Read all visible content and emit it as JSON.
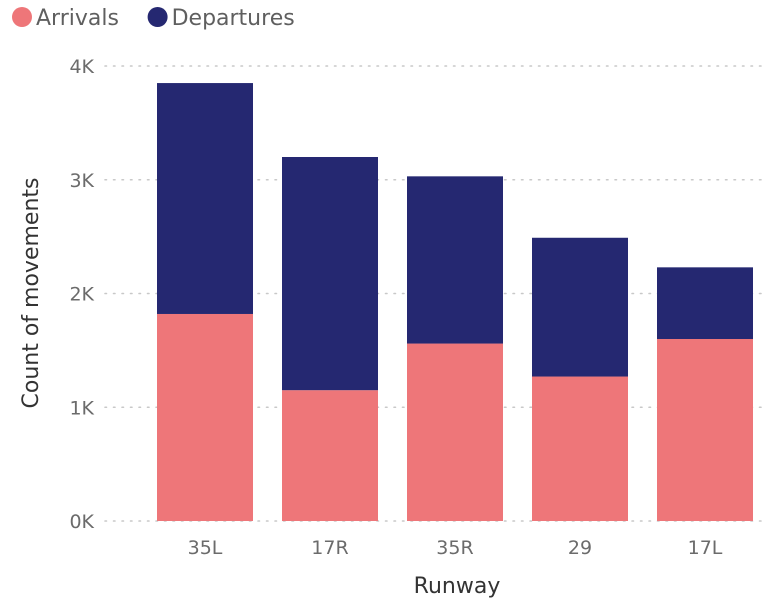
{
  "chart_data": {
    "type": "bar",
    "stacked": true,
    "categories": [
      "35L",
      "17R",
      "35R",
      "29",
      "17L"
    ],
    "series": [
      {
        "name": "Arrivals",
        "color": "#EE7679",
        "values": [
          1820,
          1150,
          1560,
          1270,
          1600
        ]
      },
      {
        "name": "Departures",
        "color": "#252871",
        "values": [
          2030,
          2050,
          1470,
          1220,
          630
        ]
      }
    ],
    "xlabel": "Runway",
    "ylabel": "Count of movements",
    "ylim": [
      0,
      4000
    ],
    "yticks": [
      0,
      1000,
      2000,
      3000,
      4000
    ],
    "ytick_labels": [
      "0K",
      "1K",
      "2K",
      "3K",
      "4K"
    ],
    "grid": true,
    "legend_position": "top-left"
  }
}
